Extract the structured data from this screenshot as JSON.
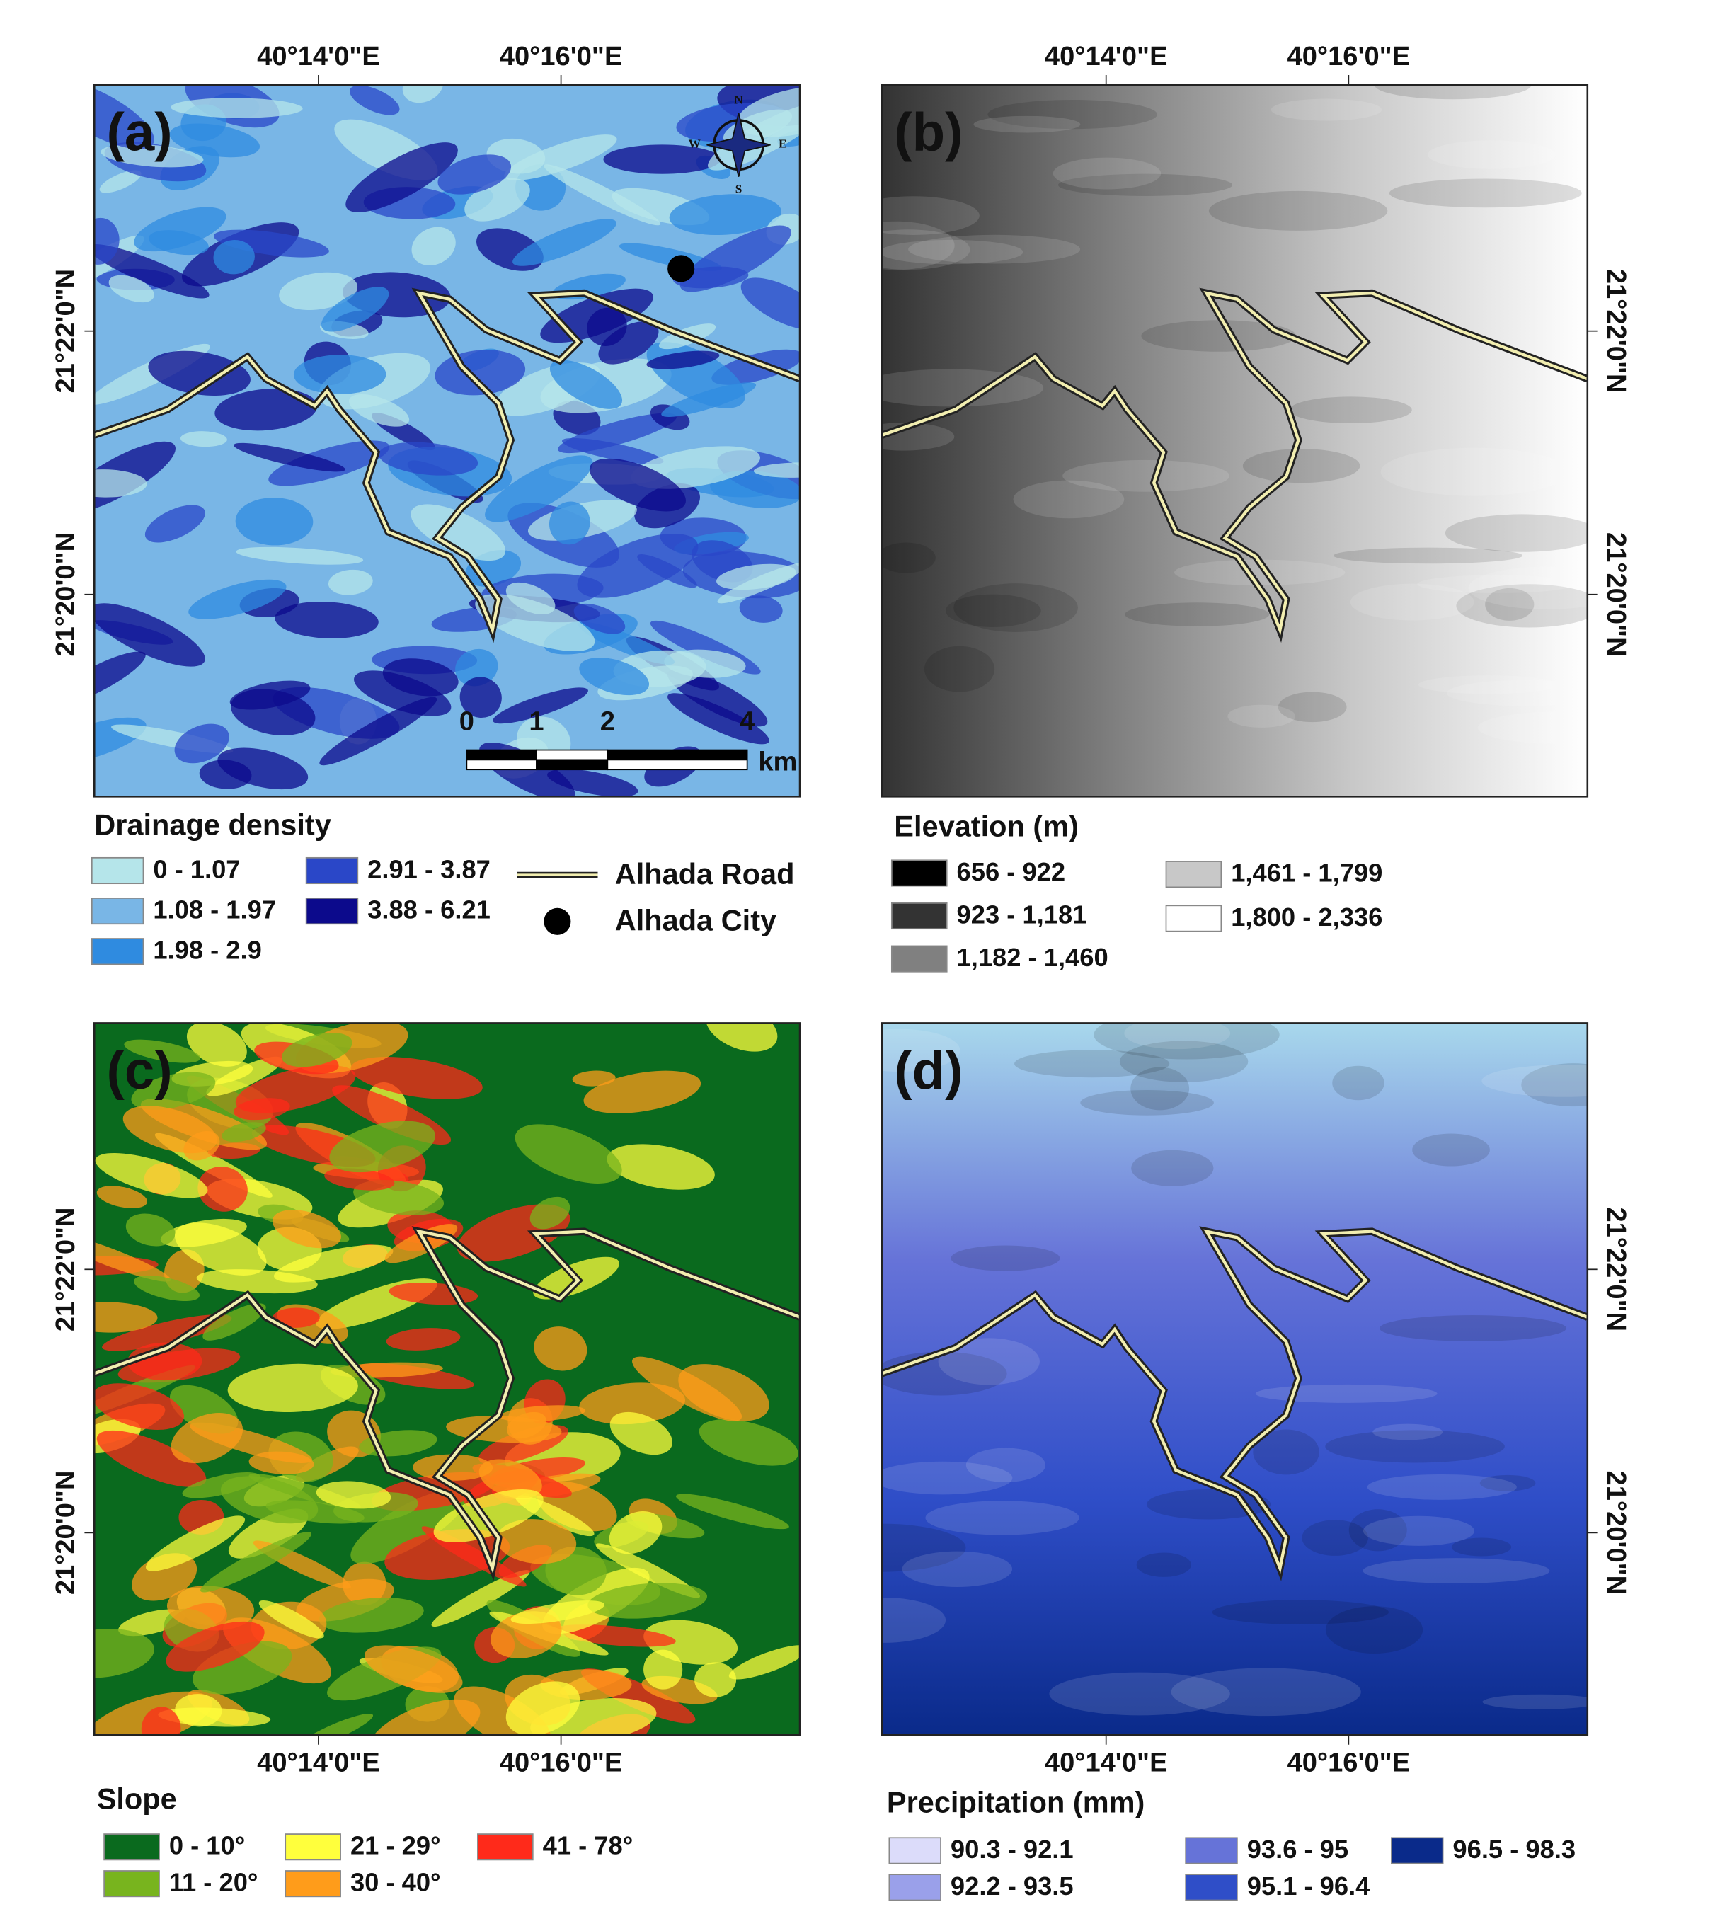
{
  "panels": [
    {
      "label": "(a)",
      "lon_labels": [
        "40°14'0\"E",
        "40°16'0\"E"
      ],
      "lat_labels": [
        "21°22'0\"N",
        "21°20'0\"N"
      ]
    },
    {
      "label": "(b)",
      "lon_labels": [
        "40°14'0\"E",
        "40°16'0\"E"
      ],
      "lat_labels": [
        "21°22'0\"N",
        "21°20'0\"N"
      ]
    },
    {
      "label": "(c)",
      "lon_labels": [
        "40°14'0\"E",
        "40°16'0\"E"
      ],
      "lat_labels": [
        "21°22'0\"N",
        "21°20'0\"N"
      ]
    },
    {
      "label": "(d)",
      "lon_labels": [
        "40°14'0\"E",
        "40°16'0\"E"
      ],
      "lat_labels": [
        "21°22'0\"N",
        "21°20'0\"N"
      ]
    }
  ],
  "compass": {
    "n": "N",
    "e": "E",
    "s": "S",
    "w": "W"
  },
  "scale_bar": {
    "labels": [
      "0",
      "1",
      "2",
      "4"
    ],
    "unit": "km"
  },
  "road": "Alhada Road",
  "city": "Alhada City",
  "legends": [
    {
      "title": "Drainage density",
      "items": [
        {
          "label": "0 - 1.07",
          "color": "#b5e5ea"
        },
        {
          "label": "1.08 - 1.97",
          "color": "#79b6e6"
        },
        {
          "label": "1.98 - 2.9",
          "color": "#2f8be0"
        },
        {
          "label": "2.91 - 3.87",
          "color": "#2a47c8"
        },
        {
          "label": "3.88 - 6.21",
          "color": "#0c0a8c"
        }
      ]
    },
    {
      "title": "Elevation (m)",
      "items": [
        {
          "label": "656 - 922",
          "color": "#000000"
        },
        {
          "label": "923 - 1,181",
          "color": "#333333"
        },
        {
          "label": "1,182 - 1,460",
          "color": "#808080"
        },
        {
          "label": "1,461 - 1,799",
          "color": "#c8c8c8"
        },
        {
          "label": "1,800 - 2,336",
          "color": "#ffffff"
        }
      ]
    },
    {
      "title": "Slope",
      "items": [
        {
          "label": "0 - 10°",
          "color": "#0a6a1e"
        },
        {
          "label": "11 - 20°",
          "color": "#78b41e"
        },
        {
          "label": "21 - 29°",
          "color": "#ffff3c"
        },
        {
          "label": "30 - 40°",
          "color": "#ff9c1a"
        },
        {
          "label": "41 - 78°",
          "color": "#ff2a1a"
        }
      ]
    },
    {
      "title": "Precipitation (mm)",
      "items": [
        {
          "label": "90.3 - 92.1",
          "color": "#dcdcfa"
        },
        {
          "label": "92.2 - 93.5",
          "color": "#9aa0ea"
        },
        {
          "label": "93.6 - 95",
          "color": "#6673d8"
        },
        {
          "label": "95.1 - 96.4",
          "color": "#2f4ec8"
        },
        {
          "label": "96.5 - 98.3",
          "color": "#0a2a8a"
        }
      ]
    }
  ]
}
